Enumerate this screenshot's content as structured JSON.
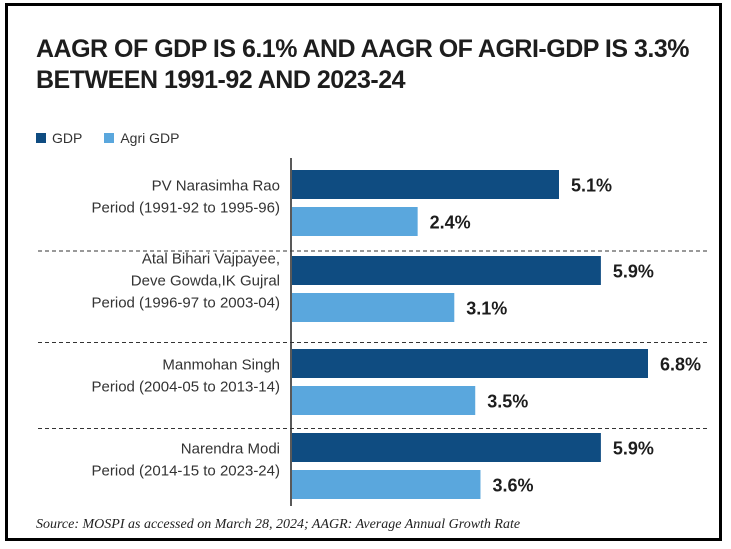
{
  "title": "AAGR OF GDP IS 6.1% AND AAGR OF AGRI-GDP IS 3.3% BETWEEN  1991-92 AND 2023-24",
  "legend": {
    "gdp": "GDP",
    "agri": "Agri GDP"
  },
  "colors": {
    "gdp": "#0f4c81",
    "agri": "#5aa7dd",
    "axis": "#222222",
    "label_text": "#333333",
    "value_text": "#1d1d1d"
  },
  "source": "Source: MOSPI as accessed on March 28, 2024; AAGR: Average Annual Growth Rate",
  "chart_data": {
    "type": "bar",
    "orientation": "horizontal",
    "grid": false,
    "legend_position": "top-left",
    "xlim": [
      0,
      7.6
    ],
    "categories": [
      [
        "PV Narasimha Rao",
        "Period (1991-92 to 1995-96)"
      ],
      [
        "Atal Bihari Vajpayee,",
        "Deve Gowda,IK Gujral",
        "Period (1996-97 to 2003-04)"
      ],
      [
        "Manmohan Singh",
        "Period (2004-05 to 2013-14)"
      ],
      [
        "Narendra Modi",
        "Period (2014-15 to 2023-24)"
      ]
    ],
    "series": [
      {
        "name": "GDP",
        "values": [
          5.1,
          5.9,
          6.8,
          5.9
        ],
        "labels": [
          "5.1%",
          "5.9%",
          "6.8%",
          "5.9%"
        ]
      },
      {
        "name": "Agri GDP",
        "values": [
          2.4,
          3.1,
          3.5,
          3.6
        ],
        "labels": [
          "2.4%",
          "3.1%",
          "3.5%",
          "3.6%"
        ]
      }
    ]
  }
}
